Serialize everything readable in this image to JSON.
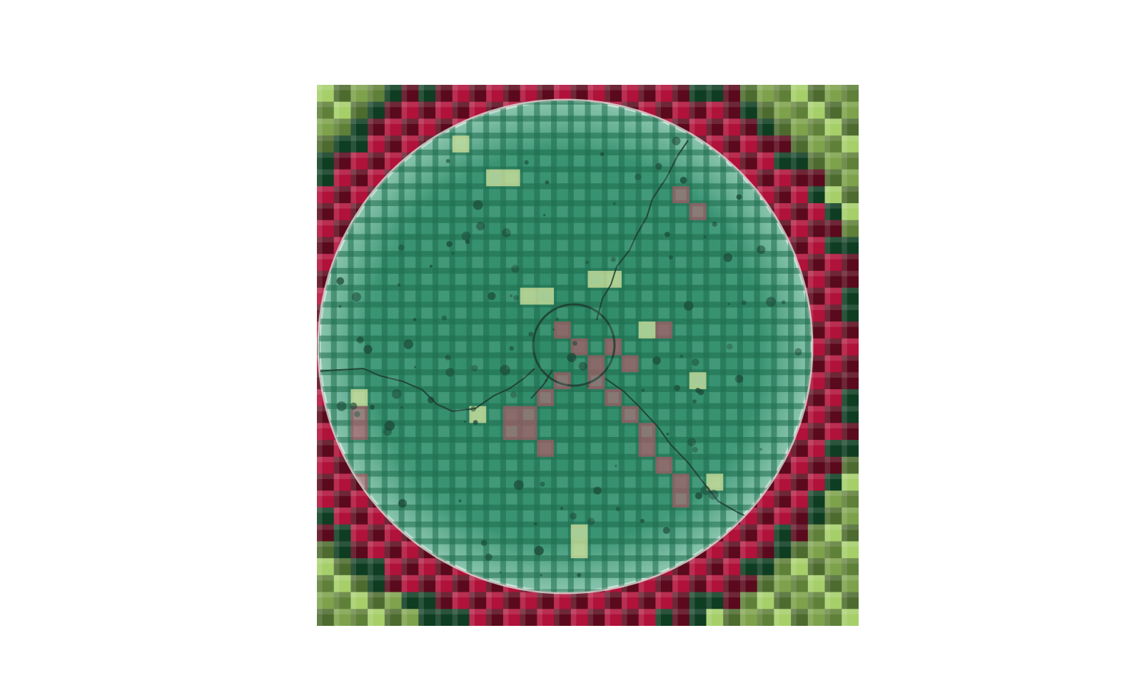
{
  "figure": {
    "kind": "concrete core cross-section with crack-detection grid overlay",
    "grid_cells_per_side": 32,
    "colors": {
      "page_background": "#ffffff",
      "outer_green_light": "#a6cf6a",
      "outer_green_dark": "#4e6b2f",
      "outer_green_deep": "#0e3d22",
      "background_red": "#b0123a",
      "background_red_dark": "#5a0a1c",
      "specimen_teal": "#2f8f6a",
      "specimen_teal_light": "#7fbfa5",
      "crack_line": "#1e3a30",
      "flag_yellow": "#d8e6a0",
      "flag_red": "#d0506a"
    }
  }
}
